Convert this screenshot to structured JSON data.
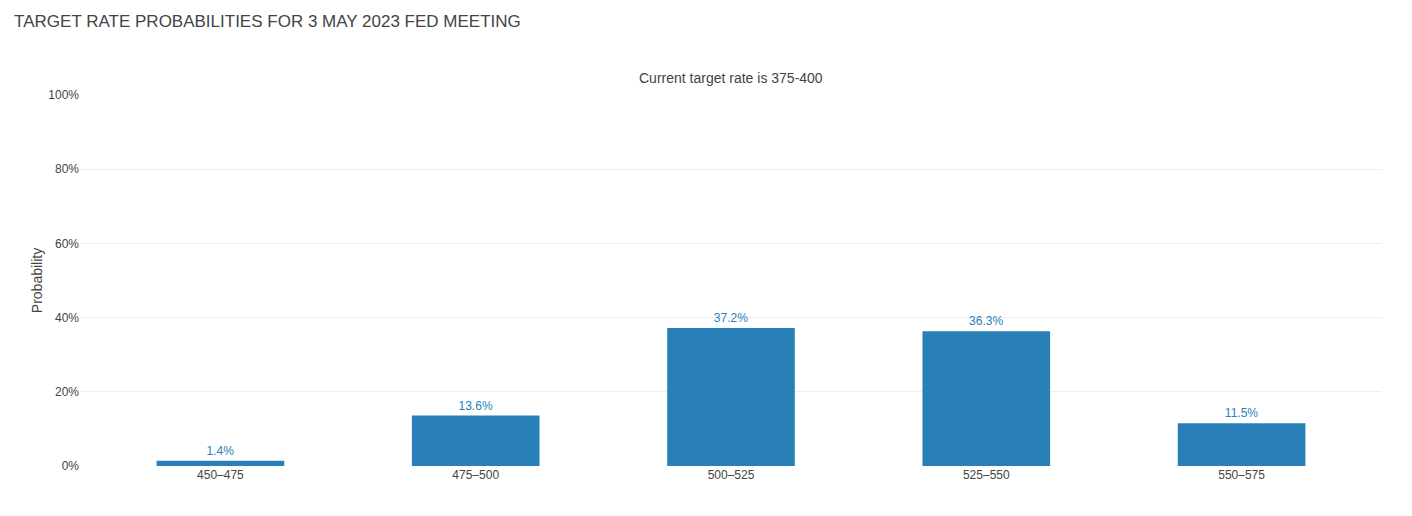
{
  "chart_data": {
    "type": "bar",
    "title": "TARGET RATE PROBABILITIES FOR 3 MAY 2023 FED MEETING",
    "subtitle": "Current target rate is 375-400",
    "categories": [
      "450–475",
      "475–500",
      "500–525",
      "525–550",
      "550–575"
    ],
    "values": [
      1.4,
      13.6,
      37.2,
      36.3,
      11.5
    ],
    "value_labels": [
      "1.4%",
      "13.6%",
      "37.2%",
      "36.3%",
      "11.5%"
    ],
    "data_labels": true,
    "color": "#2980b9",
    "ylabel": "Probability",
    "ylim": [
      0,
      100
    ],
    "yticks": [
      {
        "value": 0,
        "label": "0%"
      },
      {
        "value": 20,
        "label": "20%"
      },
      {
        "value": 40,
        "label": "40%"
      },
      {
        "value": 60,
        "label": "60%"
      },
      {
        "value": 80,
        "label": "80%"
      },
      {
        "value": 100,
        "label": "100%"
      }
    ],
    "grid": true
  }
}
